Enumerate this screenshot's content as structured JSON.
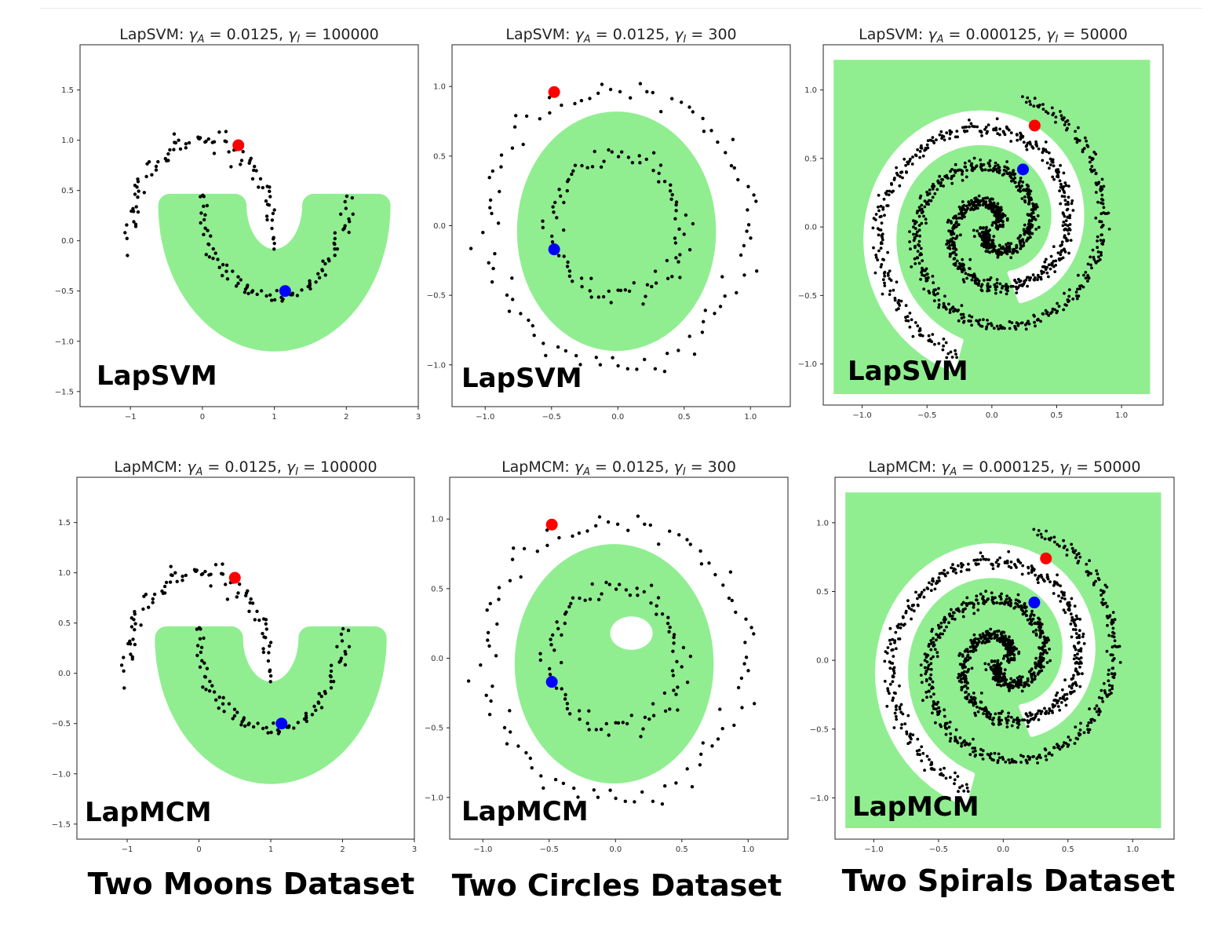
{
  "colors": {
    "region": "#90EE90",
    "point": "#000000",
    "red_label": "#ff0000",
    "blue_label": "#0000ff"
  },
  "captions": [
    "Two Moons Dataset",
    "Two Circles Dataset",
    "Two Spirals Dataset"
  ],
  "chart_data": [
    {
      "type": "scatter",
      "dataset": "moons",
      "title": "LapSVM: γ_A = 0.0125, γ_I = 100000",
      "title_main": "LapSVM: ",
      "title_tail": " = 0.0125, ",
      "title_tail2": " = 100000",
      "label": "LapSVM",
      "xlim": [
        -1.7,
        3.0
      ],
      "ylim": [
        -1.65,
        1.95
      ],
      "xticks": [
        -1,
        0,
        1,
        2,
        3
      ],
      "xticklabels": [
        "−1",
        "0",
        "1",
        "2",
        "3"
      ],
      "yticks": [
        -1.5,
        -1.0,
        -0.5,
        0.0,
        0.5,
        1.0,
        1.5
      ],
      "yticklabels": [
        "−1.5",
        "−1.0",
        "−0.5",
        "0.0",
        "0.5",
        "1.0",
        "1.5"
      ],
      "labeled_red": [
        0.5,
        0.95
      ],
      "labeled_blue": [
        1.15,
        -0.5
      ],
      "region": "lower moon band"
    },
    {
      "type": "scatter",
      "dataset": "circles",
      "title": "LapSVM: γ_A = 0.0125, γ_I = 300",
      "title_main": "LapSVM: ",
      "title_tail": " = 0.0125, ",
      "title_tail2": " = 300",
      "label": "LapSVM",
      "xlim": [
        -1.25,
        1.3
      ],
      "ylim": [
        -1.3,
        1.3
      ],
      "xticks": [
        -1.0,
        -0.5,
        0.0,
        0.5,
        1.0
      ],
      "xticklabels": [
        "−1.0",
        "−0.5",
        "0.0",
        "0.5",
        "1.0"
      ],
      "yticks": [
        -1.0,
        -0.5,
        0.0,
        0.5,
        1.0
      ],
      "yticklabels": [
        "−1.0",
        "−0.5",
        "0.0",
        "0.5",
        "1.0"
      ],
      "labeled_red": [
        -0.48,
        0.96
      ],
      "labeled_blue": [
        -0.48,
        -0.17
      ],
      "region": "inner disk"
    },
    {
      "type": "scatter",
      "dataset": "spirals",
      "title": "LapSVM: γ_A = 0.000125, γ_I = 50000",
      "title_main": "LapSVM: ",
      "title_tail": " = 0.000125, ",
      "title_tail2": " = 50000",
      "label": "LapSVM",
      "xlim": [
        -1.3,
        1.32
      ],
      "ylim": [
        -1.3,
        1.33
      ],
      "xticks": [
        -1.0,
        -0.5,
        0.0,
        0.5,
        1.0
      ],
      "xticklabels": [
        "−1.0",
        "−0.5",
        "0.0",
        "0.5",
        "1.0"
      ],
      "yticks": [
        -1.0,
        -0.5,
        0.0,
        0.5,
        1.0
      ],
      "yticklabels": [
        "−1.0",
        "−0.5",
        "0.0",
        "0.5",
        "1.0"
      ],
      "labeled_red": [
        0.33,
        0.74
      ],
      "labeled_blue": [
        0.24,
        0.42
      ],
      "region": "square minus outer spiral band"
    },
    {
      "type": "scatter",
      "dataset": "moons",
      "title": "LapMCM: γ_A = 0.0125, γ_I = 100000",
      "title_main": "LapMCM: ",
      "title_tail": " = 0.0125, ",
      "title_tail2": " = 100000",
      "label": "LapMCM",
      "xlim": [
        -1.7,
        3.0
      ],
      "ylim": [
        -1.65,
        1.95
      ],
      "xticks": [
        -1,
        0,
        1,
        2,
        3
      ],
      "xticklabels": [
        "−1",
        "0",
        "1",
        "2",
        "3"
      ],
      "yticks": [
        -1.5,
        -1.0,
        -0.5,
        0.0,
        0.5,
        1.0,
        1.5
      ],
      "yticklabels": [
        "−1.5",
        "−1.0",
        "−0.5",
        "0.0",
        "0.5",
        "1.0",
        "1.5"
      ],
      "labeled_red": [
        0.5,
        0.95
      ],
      "labeled_blue": [
        1.15,
        -0.5
      ],
      "region": "lower moon band"
    },
    {
      "type": "scatter",
      "dataset": "circles",
      "title": "LapMCM: γ_A = 0.0125, γ_I = 300",
      "title_main": "LapMCM: ",
      "title_tail": " = 0.0125, ",
      "title_tail2": " = 300",
      "label": "LapMCM",
      "xlim": [
        -1.25,
        1.3
      ],
      "ylim": [
        -1.3,
        1.3
      ],
      "xticks": [
        -1.0,
        -0.5,
        0.0,
        0.5,
        1.0
      ],
      "xticklabels": [
        "−1.0",
        "−0.5",
        "0.0",
        "0.5",
        "1.0"
      ],
      "yticks": [
        -1.0,
        -0.5,
        0.0,
        0.5,
        1.0
      ],
      "yticklabels": [
        "−1.0",
        "−0.5",
        "0.0",
        "0.5",
        "1.0"
      ],
      "labeled_red": [
        -0.48,
        0.96
      ],
      "labeled_blue": [
        -0.48,
        -0.17
      ],
      "region": "inner disk with hole"
    },
    {
      "type": "scatter",
      "dataset": "spirals",
      "title": "LapMCM: γ_A = 0.000125, γ_I = 50000",
      "title_main": "LapMCM: ",
      "title_tail": " = 0.000125, ",
      "title_tail2": " = 50000",
      "label": "LapMCM",
      "xlim": [
        -1.3,
        1.32
      ],
      "ylim": [
        -1.3,
        1.33
      ],
      "xticks": [
        -1.0,
        -0.5,
        0.0,
        0.5,
        1.0
      ],
      "xticklabels": [
        "−1.0",
        "−0.5",
        "0.0",
        "0.5",
        "1.0"
      ],
      "yticks": [
        -1.0,
        -0.5,
        0.0,
        0.5,
        1.0
      ],
      "yticklabels": [
        "−1.0",
        "−0.5",
        "0.0",
        "0.5",
        "1.0"
      ],
      "labeled_red": [
        0.33,
        0.74
      ],
      "labeled_blue": [
        0.24,
        0.42
      ],
      "region": "square minus outer spiral band"
    }
  ]
}
